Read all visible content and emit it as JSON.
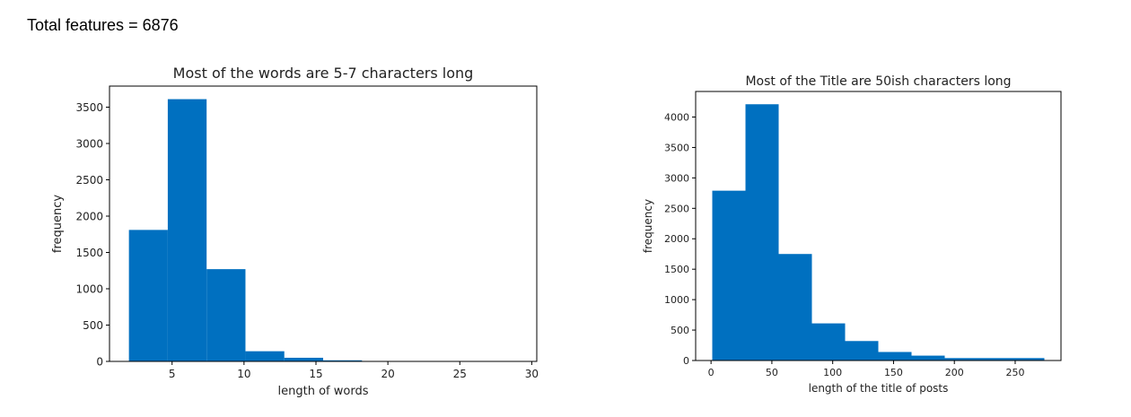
{
  "header_text": "Total features = 6876",
  "colors": {
    "bar": "#0070c0",
    "axis": "#000000",
    "text": "#222222"
  },
  "chart_data": [
    {
      "type": "bar",
      "title": "Most of the words are 5-7 characters long",
      "xlabel": "length of words",
      "ylabel": "frequency",
      "bin_edges": [
        2,
        4.7,
        7.4,
        10.1,
        12.8,
        15.5,
        18.2,
        20.9,
        23.6,
        26.3,
        29
      ],
      "values": [
        1810,
        3610,
        1270,
        140,
        50,
        15,
        5,
        3,
        2,
        1
      ],
      "xlim": [
        0.65,
        30.35
      ],
      "ylim": [
        0,
        3790
      ],
      "xticks": [
        5,
        10,
        15,
        20,
        25,
        30
      ],
      "yticks": [
        0,
        500,
        1000,
        1500,
        2000,
        2500,
        3000,
        3500
      ]
    },
    {
      "type": "bar",
      "title": "Most of the Title are 50ish characters long",
      "xlabel": "length of the title of posts",
      "ylabel": "frequency",
      "bin_edges": [
        1,
        28.3,
        55.6,
        82.9,
        110.2,
        137.5,
        164.8,
        192.1,
        219.4,
        246.7,
        274
      ],
      "values": [
        2790,
        4210,
        1750,
        610,
        320,
        140,
        80,
        40,
        40,
        40
      ],
      "xlim": [
        -12.65,
        287.65
      ],
      "ylim": [
        0,
        4420
      ],
      "xticks": [
        0,
        50,
        100,
        150,
        200,
        250
      ],
      "yticks": [
        0,
        500,
        1000,
        1500,
        2000,
        2500,
        3000,
        3500,
        4000
      ]
    }
  ]
}
